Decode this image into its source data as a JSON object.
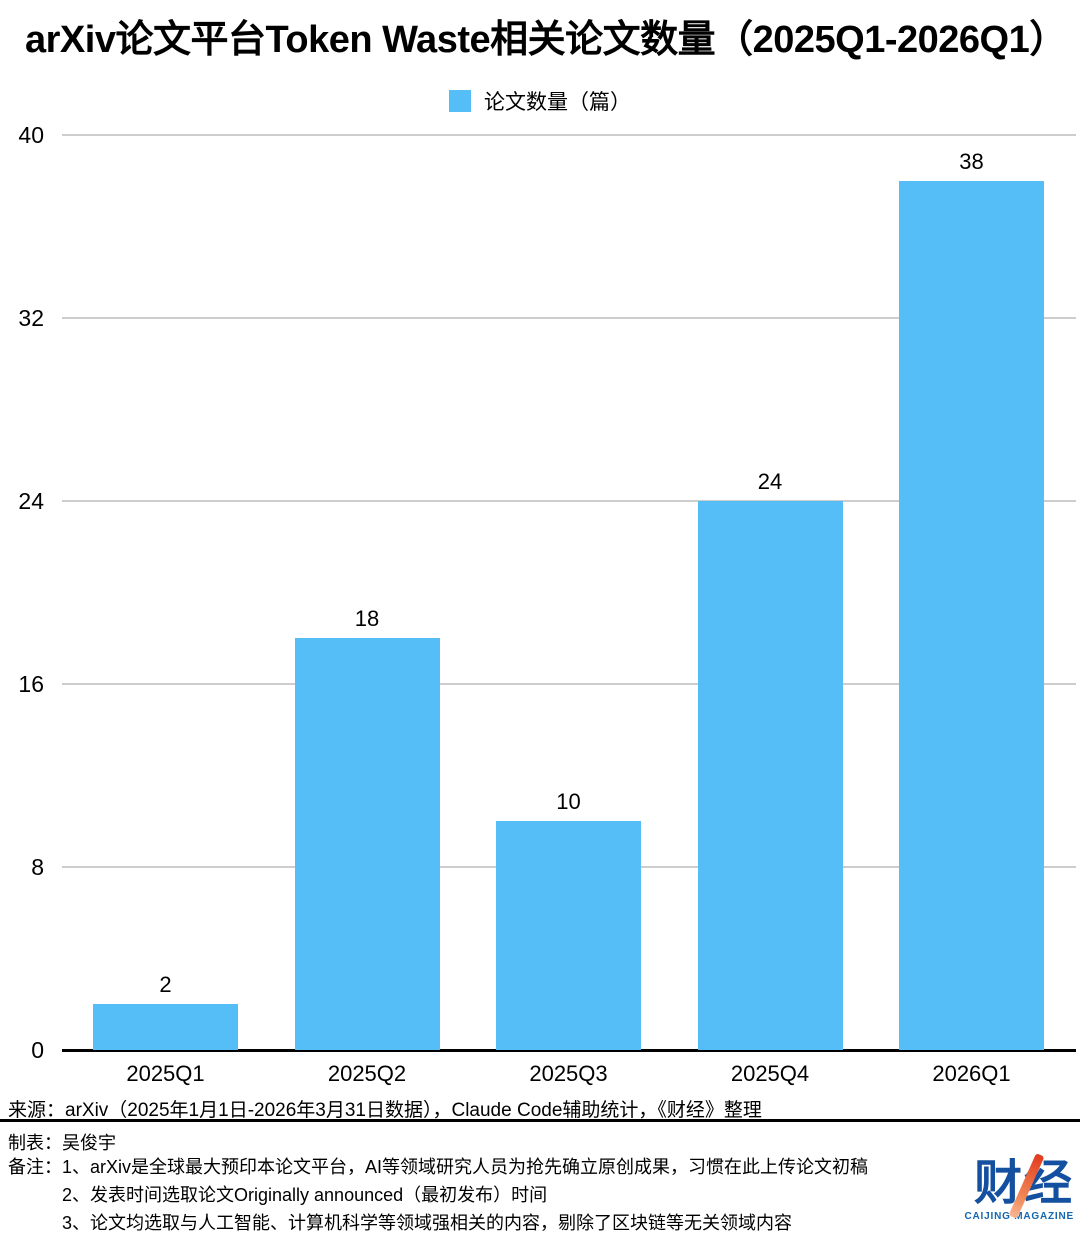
{
  "page": {
    "title": "arXiv论文平台Token Waste相关论文数量（2025Q1-2026Q1）"
  },
  "chart_data": {
    "type": "bar",
    "title": "arXiv论文平台Token Waste相关论文数量（2025Q1-2026Q1）",
    "legend": "论文数量（篇）",
    "legend_position": "top",
    "categories": [
      "2025Q1",
      "2025Q2",
      "2025Q3",
      "2025Q4",
      "2026Q1"
    ],
    "values": [
      2,
      18,
      10,
      24,
      38
    ],
    "xlabel": "",
    "ylabel": "",
    "ylim": [
      0,
      40
    ],
    "yticks": [
      0,
      8,
      16,
      24,
      32,
      40
    ],
    "grid": true,
    "bar_color": "#55BEF7",
    "grid_color": "#CDCDCD",
    "axis_color": "#000000"
  },
  "footer": {
    "source": "来源：arXiv（2025年1月1日-2026年3月31日数据），Claude Code辅助统计，《财经》整理",
    "author": "制表：吴俊宇",
    "notes_label": "备注：",
    "notes": [
      "1、arXiv是全球最大预印本论文平台，AI等领域研究人员为抢先确立原创成果，习惯在此上传论文初稿",
      "2、发表时间选取论文Originally announced（最初发布）时间",
      "3、论文均选取与人工智能、计算机科学等领域强相关的内容，剔除了区块链等无关领域内容"
    ],
    "logo": {
      "name": "财经",
      "subtitle": "CAIJING MAGAZINE",
      "brand_blue": "#1450A0",
      "brand_orange": "#E8552F"
    }
  }
}
